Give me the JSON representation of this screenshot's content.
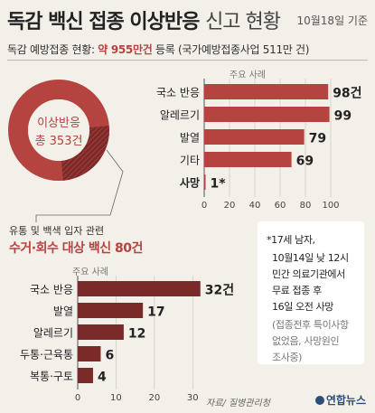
{
  "header": {
    "title_bold": "독감 백신 접종 이상반응",
    "title_light": "신고 현황",
    "date": "10월18일 기준",
    "subtitle_prefix": "독감 예방접종 현황:",
    "subtitle_highlight": "약 955만건",
    "subtitle_suffix": "등록 (국가예방접종사업 511만 건)"
  },
  "donut": {
    "label_line1": "이상반응",
    "label_line2": "총 353건",
    "main_color": "#b5433f"
  },
  "callout": {
    "sub": "유통 및 백색 입자 관련",
    "main": "수거·회수 대상 백신 80건"
  },
  "note": {
    "lines": [
      "*17세 남자,",
      "10월14일 낮 12시",
      "민간 의료기관에서",
      "무료 접종 후",
      "16일 오전 사망"
    ],
    "gray_lines": [
      "(접종전후 특이사항",
      "없었음, 사망원인",
      "조사중)"
    ]
  },
  "footer": {
    "source": "자료/ 질병관리청",
    "logo": "연합뉴스"
  },
  "chart_data": [
    {
      "type": "bar",
      "title": "주요 사례",
      "categories": [
        "국소 반응",
        "알레르기",
        "발열",
        "기타",
        "사망"
      ],
      "values": [
        98,
        99,
        79,
        69,
        1
      ],
      "value_labels": [
        "98건",
        "99",
        "79",
        "69",
        "1*"
      ],
      "xlim": [
        0,
        100
      ],
      "xticks": [
        0,
        20,
        40,
        60,
        80,
        100
      ],
      "color": "#b5433f"
    },
    {
      "type": "bar",
      "title": "주요 사례",
      "categories": [
        "국소 반응",
        "발열",
        "알레르기",
        "두통·근육통",
        "복통·구토"
      ],
      "values": [
        32,
        17,
        12,
        6,
        4
      ],
      "value_labels": [
        "32건",
        "17",
        "12",
        "6",
        "4"
      ],
      "xlim": [
        0,
        33
      ],
      "xticks": [
        0,
        10,
        20,
        30
      ],
      "color": "#7a2a28"
    }
  ]
}
